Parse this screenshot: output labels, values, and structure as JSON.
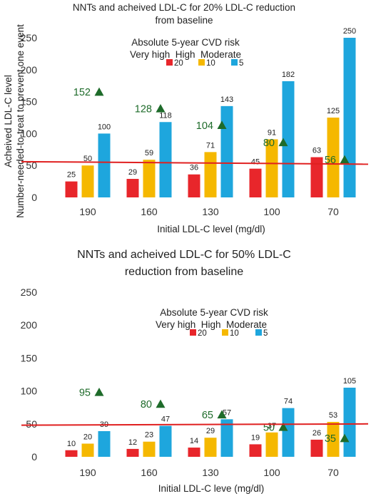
{
  "chart_data": [
    {
      "type": "bar",
      "title": "NNTs and acheived LDL-C for 20% LDL-C reduction from baseline",
      "title_lines": [
        "NNTs and acheived LDL-C for 20% LDL-C reduction",
        "from baseline"
      ],
      "ylabel_lines": [
        "Acheived LDL-C level",
        "Number-needed-to-treat to prevent one event"
      ],
      "xlabel": "Initial LDL-C level (mg/dl)",
      "categories": [
        "190",
        "160",
        "130",
        "100",
        "70"
      ],
      "ylim": [
        0,
        250
      ],
      "yticks": [
        0,
        50,
        100,
        150,
        200,
        250
      ],
      "legend_title": "Absolute 5-year CVD risk",
      "legend_groups": "Very high  High  Moderate",
      "series": [
        {
          "name": "20",
          "color": "#e8262b",
          "values": [
            25,
            29,
            36,
            45,
            63
          ]
        },
        {
          "name": "10",
          "color": "#f5b800",
          "values": [
            50,
            59,
            71,
            91,
            125
          ]
        },
        {
          "name": "5",
          "color": "#1ea6dd",
          "values": [
            100,
            118,
            143,
            182,
            250
          ]
        }
      ],
      "nnt_markers": [
        {
          "label": "152",
          "value": 165
        },
        {
          "label": "128",
          "value": 139
        },
        {
          "label": "104",
          "value": 113
        },
        {
          "label": "80",
          "value": 86
        },
        {
          "label": "56",
          "value": 59
        }
      ],
      "reference_line": [
        56,
        52
      ],
      "reference_color": "#e02020",
      "marker_color": "#1e6b2a"
    },
    {
      "type": "bar",
      "title": "NNTs and acheived LDL-C for 50% LDL-C reduction from baseline",
      "title_lines": [
        "NNTs and acheived LDL-C for 50% LDL-C",
        "reduction from baseline"
      ],
      "xlabel": "Initial LDL-C leve (mg/dl)",
      "categories": [
        "190",
        "160",
        "130",
        "100",
        "70"
      ],
      "ylim": [
        0,
        250
      ],
      "yticks": [
        0,
        50,
        100,
        150,
        200,
        250
      ],
      "legend_title": "Absolute 5-year CVD risk",
      "legend_groups": "Very high  High  Moderate",
      "series": [
        {
          "name": "20",
          "color": "#e8262b",
          "values": [
            10,
            12,
            14,
            19,
            26
          ]
        },
        {
          "name": "10",
          "color": "#f5b800",
          "values": [
            20,
            23,
            29,
            37,
            53
          ]
        },
        {
          "name": "5",
          "color": "#1ea6dd",
          "values": [
            39,
            47,
            57,
            74,
            105
          ]
        }
      ],
      "nnt_markers": [
        {
          "label": "95",
          "value": 98
        },
        {
          "label": "80",
          "value": 80
        },
        {
          "label": "65",
          "value": 64
        },
        {
          "label": "50",
          "value": 45
        },
        {
          "label": "35",
          "value": 28
        }
      ],
      "reference_line": [
        48,
        50
      ],
      "reference_color": "#e02020",
      "marker_color": "#1e6b2a"
    }
  ]
}
